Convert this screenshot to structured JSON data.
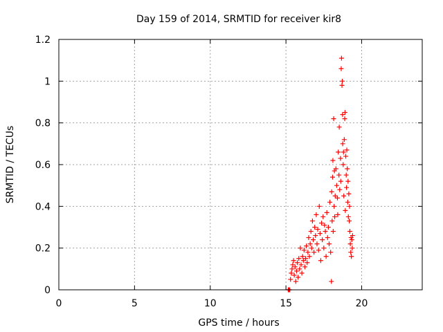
{
  "chart_data": {
    "type": "scatter",
    "title": "Day 159 of 2014, SRMTID for receiver kir8",
    "xlabel": "GPS time / hours",
    "ylabel": "SRMTID / TECUs",
    "xlim": [
      0,
      24
    ],
    "ylim": [
      0,
      1.2
    ],
    "x_ticks": [
      0,
      5,
      10,
      15,
      20
    ],
    "y_ticks": [
      0,
      0.2,
      0.4,
      0.6,
      0.8,
      1.0,
      1.2
    ],
    "x_tick_labels": [
      "0",
      "5",
      "10",
      "15",
      "20"
    ],
    "y_tick_labels": [
      "0",
      "0.2",
      "0.4",
      "0.6",
      "0.8",
      "1",
      "1.2"
    ],
    "grid": true,
    "marker": "+",
    "color": "#ff0000",
    "series": [
      {
        "name": "SRMTID",
        "points": [
          [
            15.15,
            0.0
          ],
          [
            15.2,
            0.0
          ],
          [
            15.25,
            0.0
          ],
          [
            15.3,
            0.05
          ],
          [
            15.35,
            0.08
          ],
          [
            15.4,
            0.1
          ],
          [
            15.45,
            0.12
          ],
          [
            15.5,
            0.14
          ],
          [
            15.55,
            0.07
          ],
          [
            15.6,
            0.11
          ],
          [
            15.65,
            0.04
          ],
          [
            15.7,
            0.09
          ],
          [
            15.75,
            0.13
          ],
          [
            15.8,
            0.06
          ],
          [
            15.85,
            0.15
          ],
          [
            15.9,
            0.1
          ],
          [
            15.95,
            0.2
          ],
          [
            16.0,
            0.12
          ],
          [
            16.05,
            0.08
          ],
          [
            16.1,
            0.16
          ],
          [
            16.15,
            0.14
          ],
          [
            16.2,
            0.19
          ],
          [
            16.25,
            0.11
          ],
          [
            16.3,
            0.15
          ],
          [
            16.35,
            0.21
          ],
          [
            16.4,
            0.13
          ],
          [
            16.45,
            0.18
          ],
          [
            16.5,
            0.25
          ],
          [
            16.55,
            0.16
          ],
          [
            16.6,
            0.22
          ],
          [
            16.65,
            0.28
          ],
          [
            16.7,
            0.2
          ],
          [
            16.75,
            0.33
          ],
          [
            16.8,
            0.24
          ],
          [
            16.85,
            0.18
          ],
          [
            16.9,
            0.3
          ],
          [
            16.95,
            0.26
          ],
          [
            17.0,
            0.36
          ],
          [
            17.05,
            0.22
          ],
          [
            17.1,
            0.29
          ],
          [
            17.15,
            0.19
          ],
          [
            17.2,
            0.4
          ],
          [
            17.25,
            0.27
          ],
          [
            17.3,
            0.14
          ],
          [
            17.35,
            0.32
          ],
          [
            17.4,
            0.24
          ],
          [
            17.45,
            0.35
          ],
          [
            17.5,
            0.2
          ],
          [
            17.55,
            0.31
          ],
          [
            17.6,
            0.28
          ],
          [
            17.65,
            0.16
          ],
          [
            17.7,
            0.37
          ],
          [
            17.75,
            0.25
          ],
          [
            17.8,
            0.3
          ],
          [
            17.85,
            0.22
          ],
          [
            17.9,
            0.42
          ],
          [
            17.95,
            0.18
          ],
          [
            18.0,
            0.04
          ],
          [
            18.02,
            0.47
          ],
          [
            18.05,
            0.33
          ],
          [
            18.08,
            0.54
          ],
          [
            18.1,
            0.62
          ],
          [
            18.12,
            0.28
          ],
          [
            18.15,
            0.82
          ],
          [
            18.18,
            0.4
          ],
          [
            18.2,
            0.57
          ],
          [
            18.22,
            0.35
          ],
          [
            18.25,
            0.45
          ],
          [
            18.3,
            0.58
          ],
          [
            18.35,
            0.5
          ],
          [
            18.4,
            0.44
          ],
          [
            18.42,
            0.36
          ],
          [
            18.45,
            0.66
          ],
          [
            18.5,
            0.55
          ],
          [
            18.52,
            0.78
          ],
          [
            18.55,
            0.48
          ],
          [
            18.6,
            0.63
          ],
          [
            18.62,
            0.52
          ],
          [
            18.65,
            1.06
          ],
          [
            18.67,
            1.11
          ],
          [
            18.7,
            0.98
          ],
          [
            18.72,
            1.0
          ],
          [
            18.74,
            0.84
          ],
          [
            18.75,
            0.7
          ],
          [
            18.78,
            0.6
          ],
          [
            18.8,
            0.66
          ],
          [
            18.82,
            0.45
          ],
          [
            18.85,
            0.72
          ],
          [
            18.88,
            0.82
          ],
          [
            18.9,
            0.85
          ],
          [
            18.92,
            0.38
          ],
          [
            18.95,
            0.64
          ],
          [
            18.98,
            0.55
          ],
          [
            19.0,
            0.49
          ],
          [
            19.02,
            0.67
          ],
          [
            19.05,
            0.58
          ],
          [
            19.08,
            0.42
          ],
          [
            19.1,
            0.52
          ],
          [
            19.12,
            0.35
          ],
          [
            19.15,
            0.46
          ],
          [
            19.18,
            0.33
          ],
          [
            19.2,
            0.4
          ],
          [
            19.22,
            0.28
          ],
          [
            19.25,
            0.22
          ],
          [
            19.28,
            0.18
          ],
          [
            19.3,
            0.25
          ],
          [
            19.32,
            0.16
          ],
          [
            19.35,
            0.24
          ],
          [
            19.38,
            0.2
          ],
          [
            19.4,
            0.26
          ]
        ]
      }
    ]
  }
}
